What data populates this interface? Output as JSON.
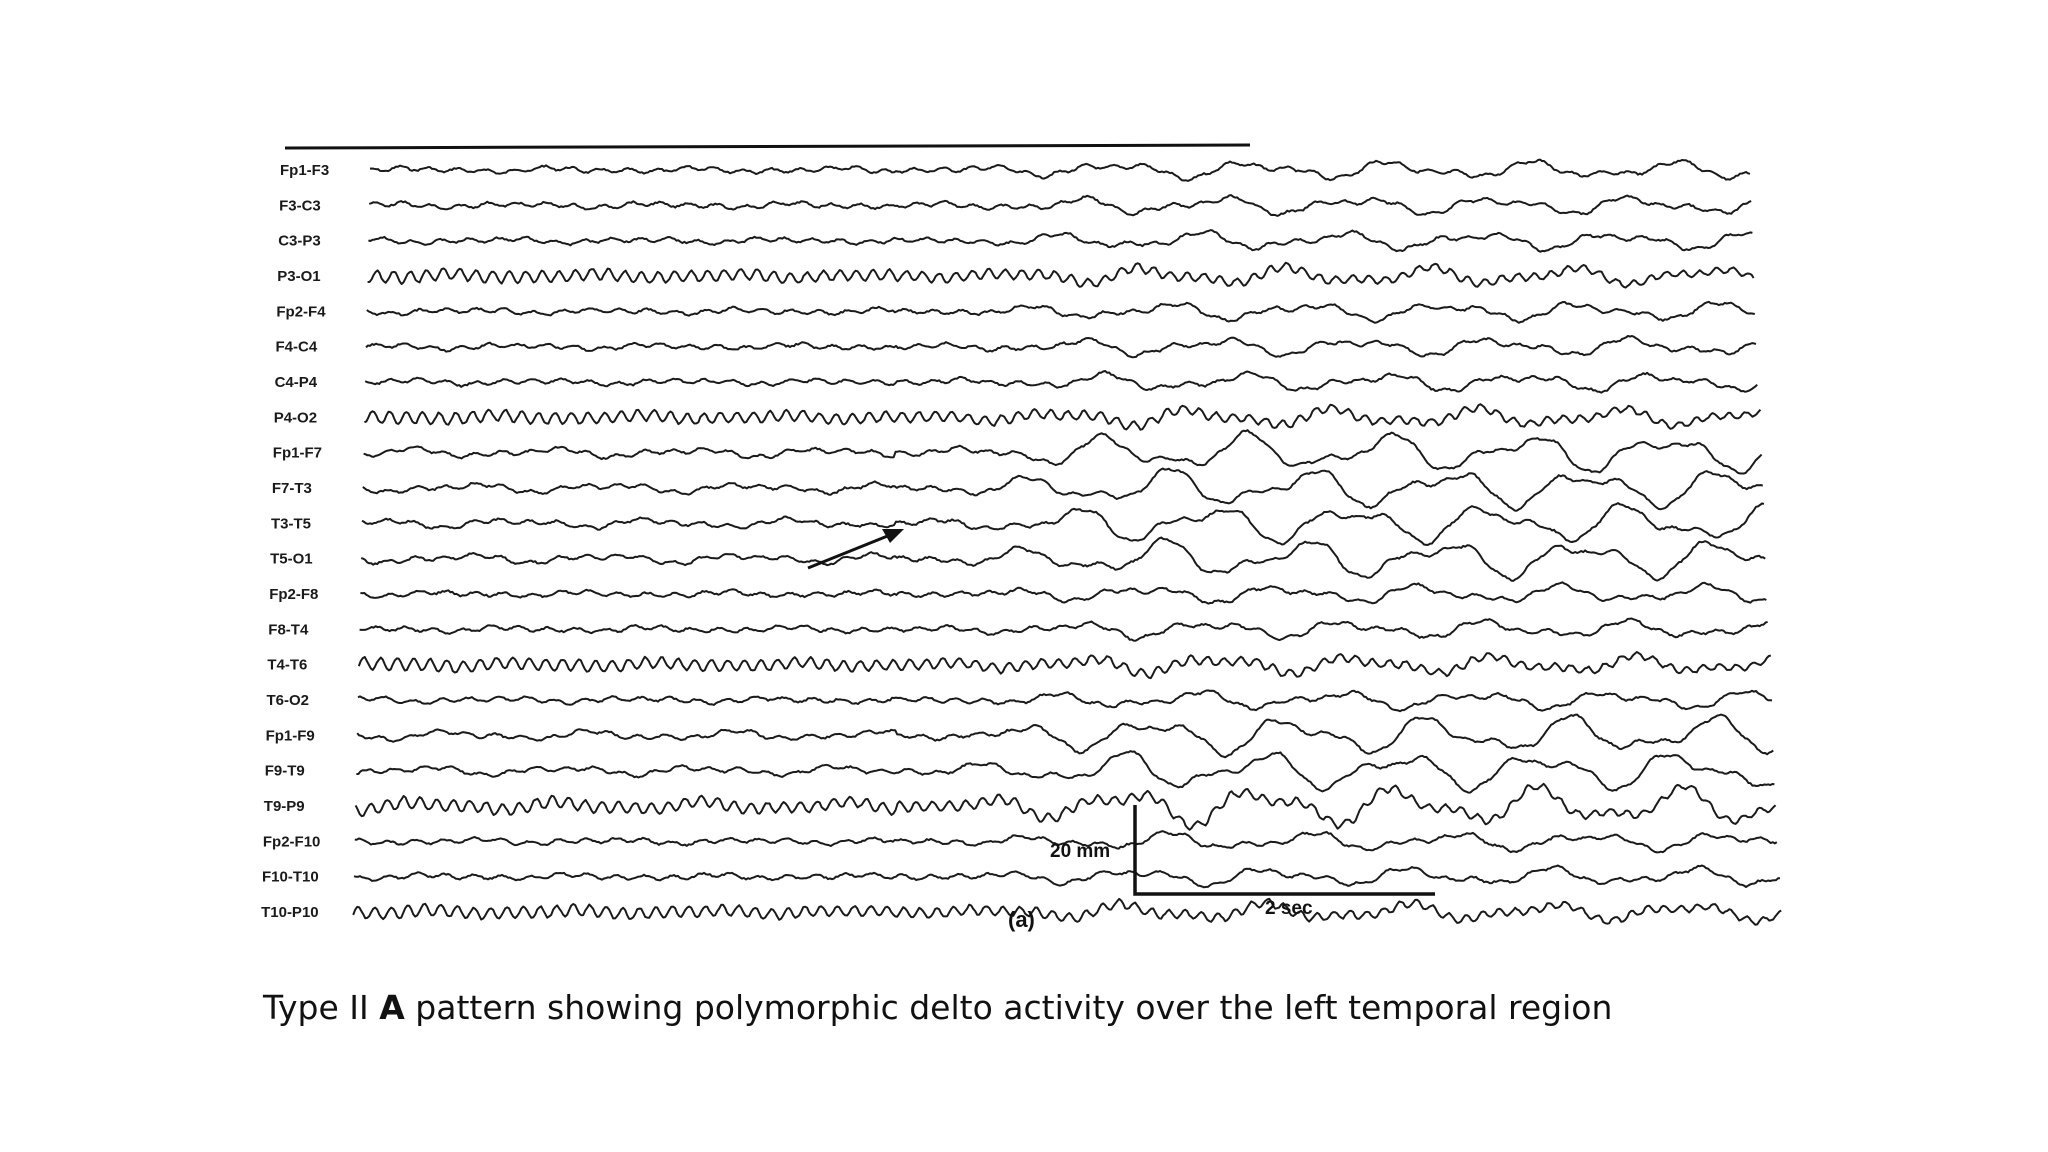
{
  "chart_data": {
    "type": "line",
    "channels": [
      "Fp1-F3",
      "F3-C3",
      "C3-P3",
      "P3-O1",
      "Fp2-F4",
      "F4-C4",
      "C4-P4",
      "P4-O2",
      "Fp1-F7",
      "F7-T3",
      "T3-T5",
      "T5-O1",
      "Fp2-F8",
      "F8-T4",
      "T4-T6",
      "T6-O2",
      "Fp1-F9",
      "F9-T9",
      "T9-P9",
      "Fp2-F10",
      "F10-T10",
      "T10-P10"
    ],
    "scale": {
      "amplitude_label": "20 mm",
      "time_label": "2 sec"
    },
    "panel_label": "(a)",
    "annotation": "arrow-marker at T3-T5 / T5-O1 onset of delta activity",
    "colors": {
      "trace": "#1a1a1a",
      "paper": "#ffffff"
    }
  },
  "caption": {
    "prefix": "Type II ",
    "bold": "A",
    "suffix": " pattern showing polymorphic delto activity over the left temporal region"
  }
}
